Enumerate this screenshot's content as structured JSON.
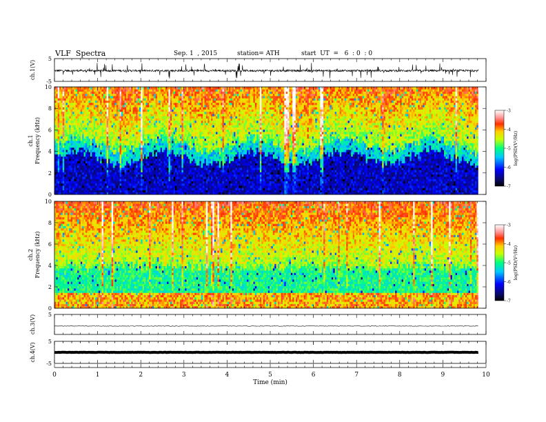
{
  "header": {
    "title": "VLF  Spectra",
    "date": "Sep. 1  , 2015",
    "station": "station= ATH",
    "start_ut": "start  UT  =   6  : 0  : 0"
  },
  "chart_data": [
    {
      "type": "line",
      "ylabel": "ch.1(V)",
      "ylim": [
        -5,
        5
      ],
      "yticks": [
        "5",
        "-5"
      ],
      "description_values": {
        "baseline": -0.3,
        "spike_max": 3.5,
        "spike_min": -3.5
      }
    },
    {
      "type": "heatmap",
      "ylabel_channel": "ch.1",
      "ylabel": "Frequency  (kHz)",
      "ylim": [
        0,
        10
      ],
      "yticks": [
        "0",
        "2",
        "4",
        "6",
        "8",
        "10"
      ],
      "colorbar": {
        "label": "log(PSD(V²/Hz)",
        "range": [
          -7,
          -3
        ],
        "ticks": [
          "-3",
          "-4",
          "-5",
          "-6",
          "-7"
        ]
      }
    },
    {
      "type": "heatmap",
      "ylabel_channel": "ch.2",
      "ylabel": "Frequency  (kHz)",
      "ylim": [
        0,
        10
      ],
      "yticks": [
        "0",
        "2",
        "4",
        "6",
        "8",
        "10"
      ],
      "colorbar": {
        "label": "log(PSD(V²/Hz)",
        "range": [
          -7,
          -3
        ],
        "ticks": [
          "-3",
          "-4",
          "-5",
          "-6",
          "-7"
        ]
      }
    },
    {
      "type": "line",
      "ylabel": "ch.3(V)",
      "ylim": [
        -5,
        5
      ],
      "yticks": [
        "5"
      ],
      "description_values": {
        "baseline": -0.8
      }
    },
    {
      "type": "line",
      "ylabel": "ch.4(V)",
      "ylim": [
        -5,
        5
      ],
      "yticks": [
        "5",
        "-5"
      ],
      "description_values": {
        "baseline": 0
      }
    }
  ],
  "xaxis": {
    "label": "Time  (min)",
    "xlim": [
      0,
      10
    ],
    "ticks": [
      "0",
      "1",
      "2",
      "3",
      "4",
      "5",
      "6",
      "7",
      "8",
      "9",
      "10"
    ],
    "data_end": 9.82
  }
}
